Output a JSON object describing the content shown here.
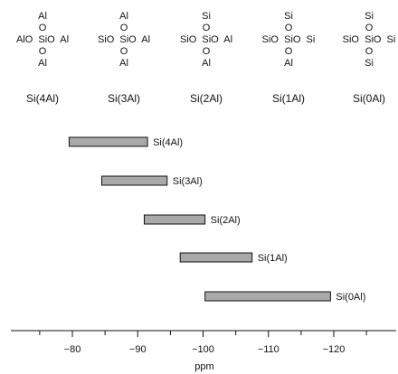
{
  "chart_data": {
    "type": "bar",
    "subtype": "horizontal-range",
    "xlabel": "ppm",
    "xlim": [
      -72,
      -127
    ],
    "x_axis_reversed": true,
    "xticks": [
      -80,
      -90,
      -100,
      -110,
      -120
    ],
    "xtick_labels": [
      "−80",
      "−90",
      "−100",
      "−110",
      "−120"
    ],
    "bar_color": "#a9a9a9",
    "grid": false,
    "series": [
      {
        "label": "Si(4Al)",
        "start": -79.5,
        "end": -91.5
      },
      {
        "label": "Si(3Al)",
        "start": -84.5,
        "end": -94.5
      },
      {
        "label": "Si(2Al)",
        "start": -91.0,
        "end": -100.3
      },
      {
        "label": "Si(1Al)",
        "start": -96.5,
        "end": -107.5
      },
      {
        "label": "Si(0Al)",
        "start": -100.3,
        "end": -119.5
      }
    ],
    "structures": [
      {
        "name": "Si(4Al)",
        "lines": [
          "Al",
          "O",
          "AlO  SiO  Al",
          "O",
          "Al"
        ]
      },
      {
        "name": "Si(3Al)",
        "lines": [
          "Al",
          "O",
          "SiO  SiO  Al",
          "O",
          "Al"
        ]
      },
      {
        "name": "Si(2Al)",
        "lines": [
          "Si",
          "O",
          "SiO  SiO  Al",
          "O",
          "Al"
        ]
      },
      {
        "name": "Si(1Al)",
        "lines": [
          "Si",
          "O",
          "SiO  SiO  Si",
          "O",
          "Al"
        ]
      },
      {
        "name": "Si(0Al)",
        "lines": [
          "Si",
          "O",
          "SiO  SiO  Si",
          "O",
          "Si"
        ]
      }
    ]
  }
}
